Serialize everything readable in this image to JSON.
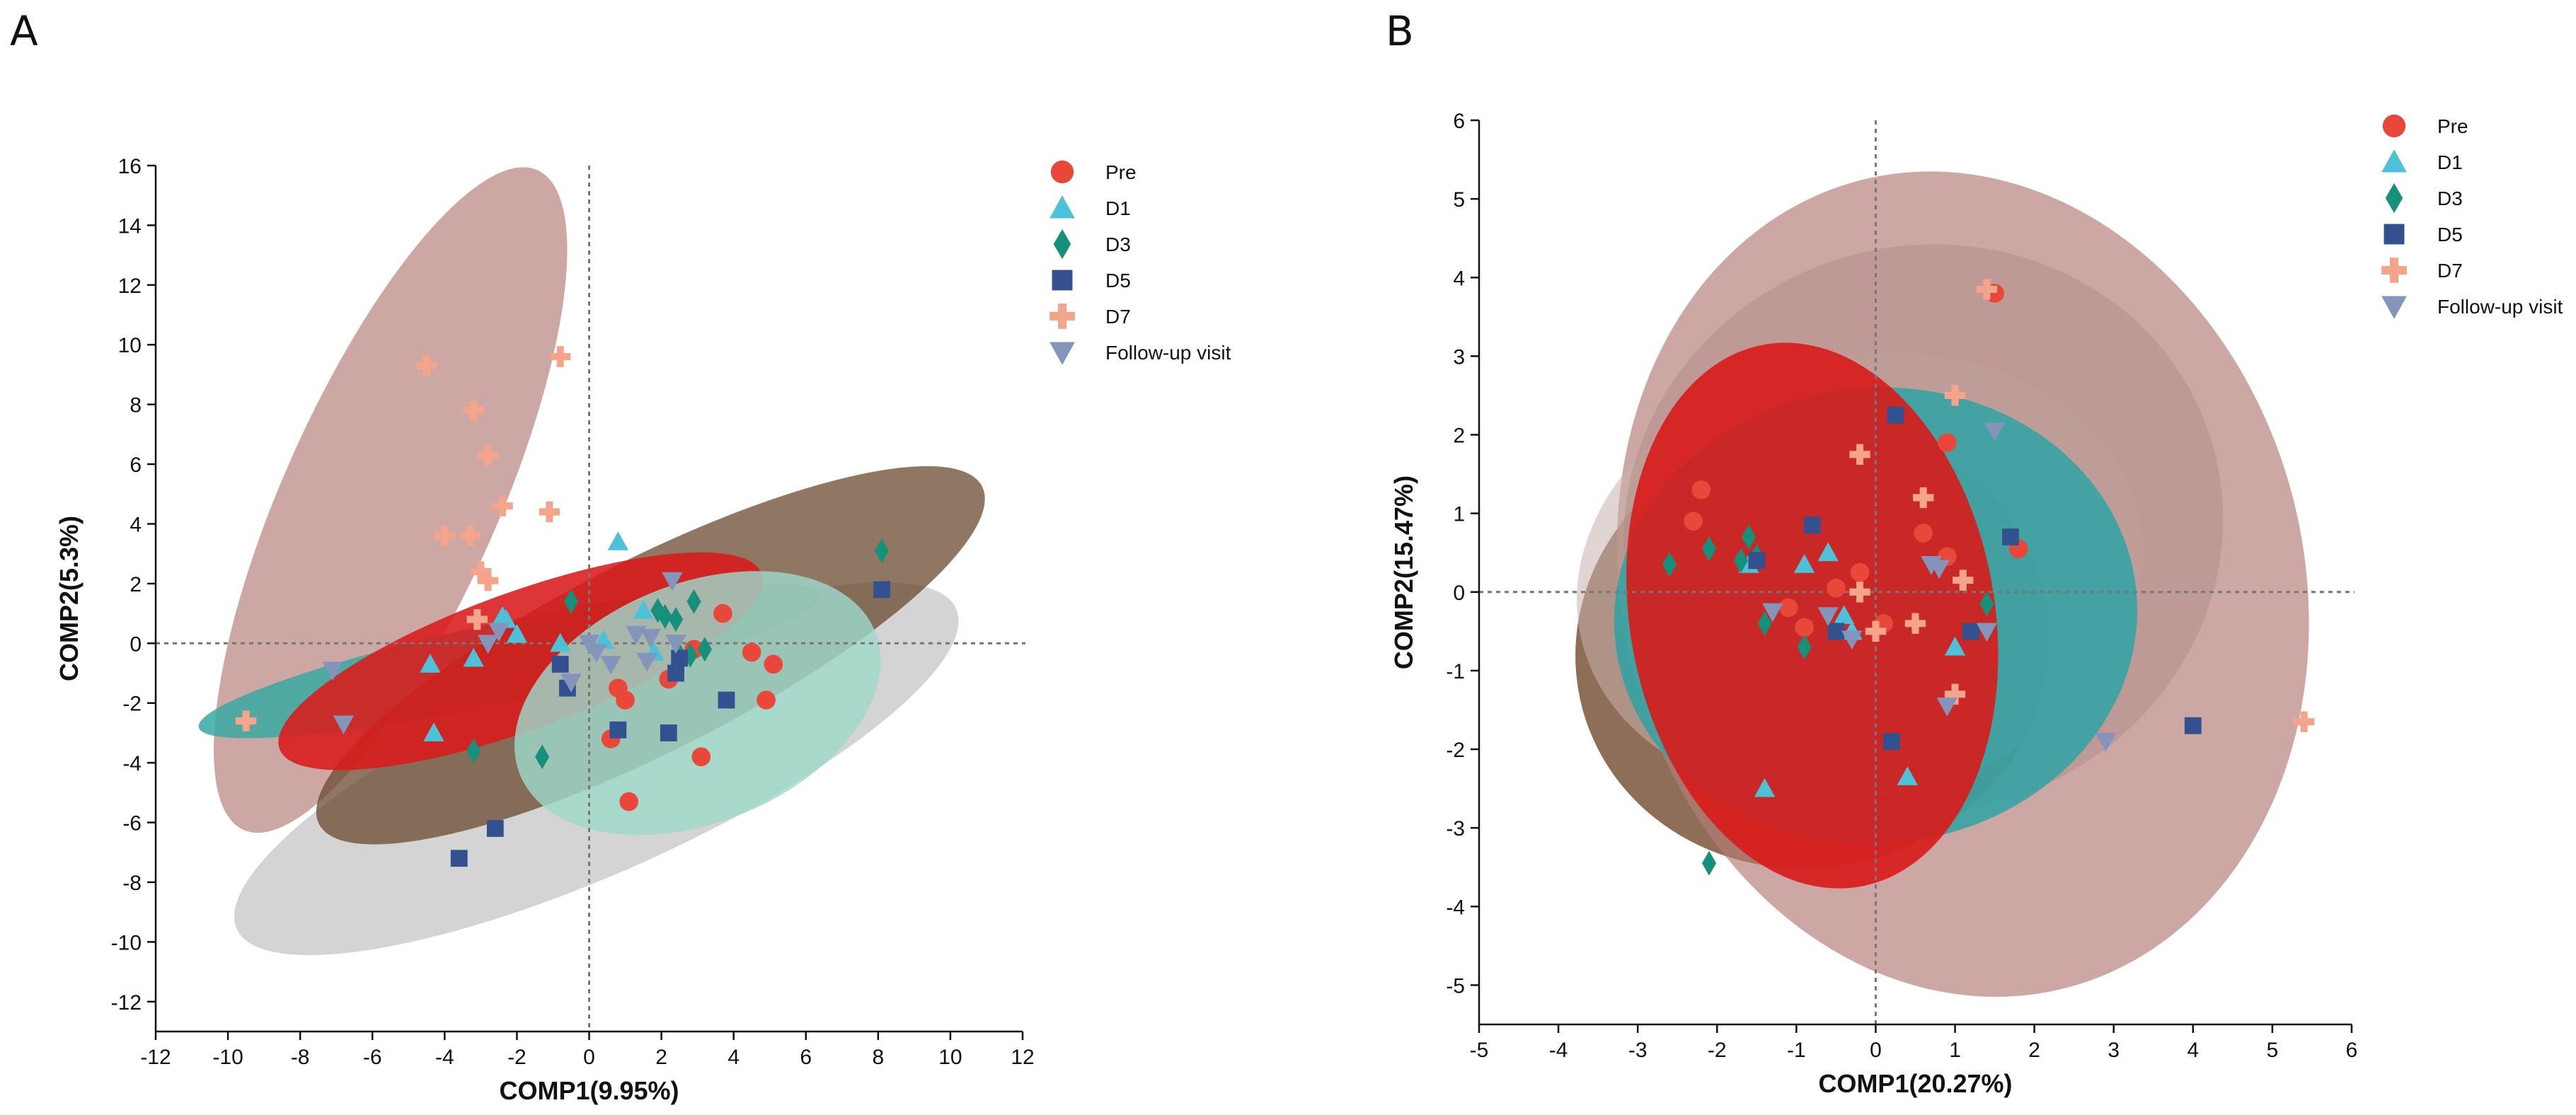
{
  "figure": {
    "panel_labels": [
      "A",
      "B"
    ]
  },
  "chart_data": [
    {
      "type": "scatter",
      "panel": "A",
      "title": "",
      "xlabel": "COMP1(9.95%)",
      "ylabel": "COMP2(5.3%)",
      "xlim": [
        -12,
        12
      ],
      "ylim": [
        -13,
        16
      ],
      "xticks": [
        -12,
        -10,
        -8,
        -6,
        -4,
        -2,
        0,
        2,
        4,
        6,
        8,
        10,
        12
      ],
      "yticks": [
        -12,
        -10,
        -8,
        -6,
        -4,
        -2,
        0,
        2,
        4,
        6,
        8,
        10,
        12,
        14,
        16
      ],
      "reference_lines": {
        "x": 0,
        "y": 0,
        "style": "dotted"
      },
      "legend_position": "top-right",
      "ellipse_order": [
        "D7",
        "Follow-up visit",
        "D1",
        "D3",
        "Pre",
        "D5"
      ],
      "ellipses": [
        {
          "group": "D7",
          "color": "#b67e78",
          "opacity": 0.68,
          "cx": -5.5,
          "cy": 4.8,
          "rx": 10.0,
          "ry": 3.6,
          "angle": 66
        },
        {
          "group": "Follow-up visit",
          "color": "#c4c4c4",
          "opacity": 0.72,
          "cx": 0.2,
          "cy": -4.2,
          "rx": 10.9,
          "ry": 3.5,
          "angle": 24
        },
        {
          "group": "D1",
          "color": "#3aa8a2",
          "opacity": 0.85,
          "cx": -2.2,
          "cy": -0.6,
          "rx": 8.8,
          "ry": 1.35,
          "angle": 12
        },
        {
          "group": "D3",
          "color": "#6b4a2f",
          "opacity": 0.75,
          "cx": 1.7,
          "cy": -0.4,
          "rx": 10.3,
          "ry": 3.2,
          "angle": 27
        },
        {
          "group": "Pre",
          "color": "#d91a1a",
          "opacity": 0.88,
          "cx": -1.9,
          "cy": -0.6,
          "rx": 7.1,
          "ry": 2.3,
          "angle": 20
        },
        {
          "group": "D5",
          "color": "#9fd8cb",
          "opacity": 0.82,
          "cx": 3.0,
          "cy": -2.0,
          "rx": 5.3,
          "ry": 4.0,
          "angle": 22
        }
      ],
      "series": [
        {
          "name": "Pre",
          "marker": "circle",
          "color": "#e8473a",
          "x": [
            0.8,
            1.0,
            0.6,
            2.2,
            1.1,
            3.1,
            3.7,
            4.5,
            5.1,
            4.9,
            2.9
          ],
          "y": [
            -1.5,
            -1.9,
            -3.2,
            -1.2,
            -5.3,
            -3.8,
            1.0,
            -0.3,
            -0.7,
            -1.9,
            -0.2
          ]
        },
        {
          "name": "D1",
          "marker": "triangle-up",
          "color": "#4ec0d8",
          "x": [
            0.8,
            -4.4,
            -3.2,
            -2.4,
            -2.0,
            -4.3,
            1.5,
            1.8,
            0.4,
            -0.8,
            -2.3
          ],
          "y": [
            3.4,
            -0.7,
            -0.5,
            0.9,
            0.3,
            -3.0,
            1.1,
            -0.3,
            0.1,
            0.0,
            0.8
          ]
        },
        {
          "name": "D3",
          "marker": "diamond",
          "color": "#16907a",
          "x": [
            8.1,
            -0.5,
            -1.3,
            -3.2,
            1.9,
            2.4,
            2.9,
            2.5,
            3.2,
            2.1,
            2.8
          ],
          "y": [
            3.1,
            1.4,
            -3.8,
            -3.6,
            1.1,
            0.8,
            1.4,
            -0.4,
            -0.2,
            0.9,
            -0.4
          ]
        },
        {
          "name": "D5",
          "marker": "square",
          "color": "#33508f",
          "x": [
            8.1,
            3.8,
            2.2,
            0.8,
            -0.8,
            -0.6,
            -2.6,
            -3.6,
            2.4,
            2.5
          ],
          "y": [
            1.8,
            -1.9,
            -3.0,
            -2.9,
            -0.7,
            -1.5,
            -6.2,
            -7.2,
            -1.0,
            -0.5
          ]
        },
        {
          "name": "D7",
          "marker": "plus",
          "color": "#f5a48c",
          "x": [
            -9.5,
            -4.5,
            -3.2,
            -0.8,
            -2.8,
            -2.4,
            -1.1,
            -4.0,
            -3.3,
            -3.0,
            -3.1,
            -2.8
          ],
          "y": [
            -2.6,
            9.3,
            7.8,
            9.6,
            6.3,
            4.6,
            4.4,
            3.6,
            3.6,
            2.4,
            0.8,
            2.1
          ]
        },
        {
          "name": "Follow-up visit",
          "marker": "triangle-down",
          "color": "#8494bb",
          "x": [
            -7.1,
            -6.8,
            -2.5,
            -2.8,
            1.3,
            2.3,
            0.0,
            0.2,
            0.6,
            1.7,
            -0.5,
            2.4,
            1.6
          ],
          "y": [
            -0.9,
            -2.7,
            0.4,
            0.0,
            0.3,
            2.1,
            0.0,
            -0.3,
            -0.7,
            0.2,
            -1.3,
            0.0,
            -0.6
          ]
        }
      ]
    },
    {
      "type": "scatter",
      "panel": "B",
      "title": "",
      "xlabel": "COMP1(20.27%)",
      "ylabel": "COMP2(15.47%)",
      "xlim": [
        -5,
        6
      ],
      "ylim": [
        -5.5,
        6
      ],
      "xticks": [
        -5,
        -4,
        -3,
        -2,
        -1,
        0,
        1,
        2,
        3,
        4,
        5,
        6
      ],
      "yticks": [
        -5,
        -4,
        -3,
        -2,
        -1,
        0,
        1,
        2,
        3,
        4,
        5,
        6
      ],
      "reference_lines": {
        "x": 0,
        "y": 0,
        "style": "dotted"
      },
      "legend_position": "top-right",
      "ellipse_order": [
        "D3",
        "D7",
        "Follow-up visit",
        "D5",
        "D1",
        "Pre"
      ],
      "ellipses": [
        {
          "group": "D3",
          "color": "#7a5538",
          "opacity": 0.85,
          "cx": -0.8,
          "cy": -0.7,
          "rx": 3.0,
          "ry": 2.8,
          "angle": 15
        },
        {
          "group": "D7",
          "color": "#b67e78",
          "opacity": 0.68,
          "cx": 1.1,
          "cy": 0.1,
          "rx": 4.3,
          "ry": 5.3,
          "angle": 14
        },
        {
          "group": "Follow-up visit",
          "color": "#c9b2ae",
          "opacity": 0.55,
          "cx": -0.2,
          "cy": 0.2,
          "rx": 3.6,
          "ry": 2.8,
          "angle": 12
        },
        {
          "group": "D5",
          "color": "#b08a85",
          "opacity": 0.45,
          "cx": 0.6,
          "cy": 0.8,
          "rx": 3.8,
          "ry": 3.6,
          "angle": 18
        },
        {
          "group": "D1",
          "color": "#2aa3a5",
          "opacity": 0.82,
          "cx": 0.0,
          "cy": -0.3,
          "rx": 3.3,
          "ry": 2.9,
          "angle": 5
        },
        {
          "group": "Pre",
          "color": "#d91a1a",
          "opacity": 0.9,
          "cx": -0.8,
          "cy": -0.3,
          "rx": 2.3,
          "ry": 3.5,
          "angle": 10
        }
      ],
      "series": [
        {
          "name": "Pre",
          "marker": "circle",
          "color": "#e8473a",
          "x": [
            1.5,
            -2.2,
            -2.3,
            0.9,
            1.8,
            -0.5,
            0.6,
            0.9,
            -1.1,
            -0.2,
            0.1,
            -0.9
          ],
          "y": [
            3.8,
            1.3,
            0.9,
            1.9,
            0.55,
            0.05,
            0.75,
            0.45,
            -0.2,
            0.25,
            -0.4,
            -0.45
          ]
        },
        {
          "name": "D1",
          "marker": "triangle-up",
          "color": "#4ec0d8",
          "x": [
            -1.4,
            0.4,
            1.0,
            -0.4,
            -0.6,
            -0.9,
            -1.6,
            -0.3
          ],
          "y": [
            -2.5,
            -2.35,
            -0.7,
            -0.3,
            0.5,
            0.35,
            0.35,
            -0.5
          ]
        },
        {
          "name": "D3",
          "marker": "diamond",
          "color": "#16907a",
          "x": [
            -2.1,
            -2.1,
            -1.6,
            -1.7,
            -1.4,
            -0.9,
            -2.6,
            1.4,
            -1.5
          ],
          "y": [
            -3.45,
            0.55,
            0.7,
            0.4,
            -0.4,
            -0.7,
            0.35,
            -0.15,
            0.45
          ]
        },
        {
          "name": "D5",
          "marker": "square",
          "color": "#33508f",
          "x": [
            0.25,
            1.7,
            -0.8,
            4.0,
            0.2,
            1.2,
            -1.5,
            -0.5
          ],
          "y": [
            2.25,
            0.7,
            0.85,
            -1.7,
            -1.9,
            -0.5,
            0.4,
            -0.5
          ]
        },
        {
          "name": "D7",
          "marker": "plus",
          "color": "#f5a48c",
          "x": [
            1.4,
            1.0,
            -0.2,
            0.6,
            1.1,
            0.5,
            1.0,
            5.4,
            -0.2,
            0.0
          ],
          "y": [
            3.85,
            2.5,
            1.75,
            1.2,
            0.15,
            -0.4,
            -1.3,
            -1.65,
            0.0,
            -0.5
          ]
        },
        {
          "name": "Follow-up visit",
          "marker": "triangle-down",
          "color": "#8494bb",
          "x": [
            1.5,
            0.7,
            2.9,
            0.9,
            -0.3,
            -1.3,
            1.4,
            0.8,
            -0.6
          ],
          "y": [
            2.05,
            0.35,
            -1.9,
            -1.45,
            -0.6,
            -0.25,
            -0.5,
            0.3,
            -0.3
          ]
        }
      ]
    }
  ]
}
